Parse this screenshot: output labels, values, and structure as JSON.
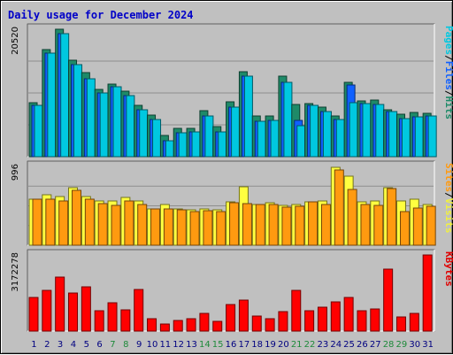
{
  "chart_data": {
    "type": "bar",
    "title": "Daily usage for December 2024",
    "categories": [
      "1",
      "2",
      "3",
      "4",
      "5",
      "6",
      "7",
      "8",
      "9",
      "10",
      "11",
      "12",
      "13",
      "14",
      "15",
      "16",
      "17",
      "18",
      "19",
      "20",
      "21",
      "22",
      "23",
      "24",
      "25",
      "26",
      "27",
      "28",
      "29",
      "30",
      "31"
    ],
    "weekend_days": [
      "7",
      "8",
      "14",
      "15",
      "21",
      "22",
      "28",
      "29"
    ],
    "panels": [
      {
        "id": "hits-files-pages",
        "ymax_label": "20520",
        "ymax": 20520,
        "grid": true,
        "side_labels": [
          "Pages",
          "/",
          "Files",
          "/",
          "Hits"
        ],
        "side_label_colors": [
          "#00c8e0",
          "#000000",
          "#1060ff",
          "#000000",
          "#1e8a68"
        ],
        "series": [
          {
            "name": "Hits",
            "color": "#1e8a68",
            "values": [
              8700,
              17300,
              20520,
              15600,
              13500,
              10900,
              11700,
              10600,
              8300,
              6700,
              3400,
              4600,
              4500,
              7400,
              4900,
              8800,
              13700,
              6600,
              6500,
              13000,
              8400,
              8600,
              8000,
              6500,
              12000,
              9000,
              9100,
              7600,
              6900,
              7100,
              7000
            ]
          },
          {
            "name": "Files",
            "color": "#1060ff",
            "values": [
              8300,
              16700,
              19800,
              14800,
              12600,
              10300,
              11300,
              9800,
              7600,
              6000,
              2500,
              3900,
              4000,
              6600,
              4000,
              8000,
              12900,
              5700,
              5800,
              11900,
              5900,
              8300,
              7300,
              6000,
              11600,
              8500,
              8400,
              7300,
              6100,
              6400,
              6600
            ]
          },
          {
            "name": "Pages",
            "color": "#00c8e0",
            "values": [
              8300,
              16700,
              19800,
              14800,
              12600,
              10300,
              11300,
              9800,
              7600,
              6000,
              2500,
              3900,
              4000,
              6600,
              4000,
              8000,
              12900,
              5700,
              5800,
              11900,
              5000,
              8300,
              7300,
              6000,
              8700,
              8500,
              8400,
              7300,
              6100,
              6400,
              6600
            ]
          }
        ]
      },
      {
        "id": "visits-sites",
        "ymax_label": "996",
        "ymax": 996,
        "grid": true,
        "side_labels": [
          "Sites",
          "/",
          "Visits"
        ],
        "side_label_colors": [
          "#ff9a10",
          "#000000",
          "#f0f040"
        ],
        "series": [
          {
            "name": "Visits",
            "color": "#ffff40",
            "values": [
              580,
              640,
              620,
              730,
              610,
              560,
              560,
              600,
              560,
              460,
              520,
              460,
              450,
              460,
              450,
              550,
              740,
              520,
              540,
              500,
              510,
              550,
              560,
              990,
              870,
              550,
              560,
              730,
              560,
              580,
              510
            ]
          },
          {
            "name": "Sites",
            "color": "#ff9a10",
            "values": [
              580,
              580,
              560,
              690,
              580,
              530,
              500,
              560,
              520,
              460,
              460,
              450,
              430,
              440,
              430,
              540,
              530,
              520,
              510,
              480,
              490,
              550,
              520,
              950,
              710,
              510,
              500,
              720,
              430,
              470,
              490
            ]
          }
        ]
      },
      {
        "id": "kbytes",
        "ymax_label": "3172278",
        "ymax": 3172278,
        "grid": false,
        "side_labels": [
          "KBytes"
        ],
        "side_label_colors": [
          "#e00000"
        ],
        "series": [
          {
            "name": "KBytes",
            "color": "#ff0000",
            "values": [
              1400000,
              1700000,
              2250000,
              1600000,
              1850000,
              850000,
              1180000,
              880000,
              1750000,
              520000,
              300000,
              460000,
              500000,
              740000,
              410000,
              1120000,
              1280000,
              610000,
              500000,
              800000,
              1680000,
              840000,
              1000000,
              1200000,
              1420000,
              850000,
              940000,
              2600000,
              600000,
              740000,
              3172278
            ]
          }
        ]
      }
    ]
  }
}
